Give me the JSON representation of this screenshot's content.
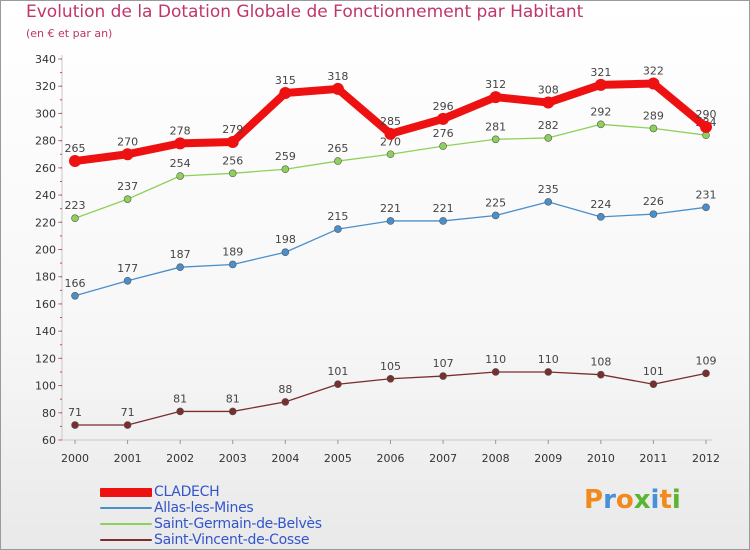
{
  "chart_data": {
    "type": "line",
    "title": "Evolution de la Dotation Globale de Fonctionnement par Habitant",
    "subtitle": "(en € et par an)",
    "xlabel": "",
    "ylabel": "",
    "x": [
      "2000",
      "2001",
      "2002",
      "2003",
      "2004",
      "2005",
      "2006",
      "2007",
      "2008",
      "2009",
      "2010",
      "2011",
      "2012"
    ],
    "ylim": [
      60,
      340
    ],
    "yticks": [
      60,
      80,
      100,
      120,
      140,
      160,
      180,
      200,
      220,
      240,
      260,
      280,
      300,
      320,
      340
    ],
    "grid": false,
    "legend_position": "bottom-left",
    "series": [
      {
        "name": "CLADECH",
        "color": "#ee1111",
        "values": [
          265,
          270,
          278,
          279,
          315,
          318,
          285,
          296,
          312,
          308,
          321,
          322,
          290
        ]
      },
      {
        "name": "Allas-les-Mines",
        "color": "#4a8fcc",
        "values": [
          166,
          177,
          187,
          189,
          198,
          215,
          221,
          221,
          225,
          235,
          224,
          226,
          231
        ]
      },
      {
        "name": "Saint-Germain-de-Belvès",
        "color": "#8fd05a",
        "values": [
          223,
          237,
          254,
          256,
          259,
          265,
          270,
          276,
          281,
          282,
          292,
          289,
          284
        ]
      },
      {
        "name": "Saint-Vincent-de-Cosse",
        "color": "#7a2e2e",
        "values": [
          71,
          71,
          81,
          81,
          88,
          101,
          105,
          107,
          110,
          110,
          108,
          101,
          109
        ]
      }
    ]
  },
  "branding": {
    "logo_letters": [
      "P",
      "r",
      "o",
      "x",
      "i",
      "t",
      "i"
    ],
    "logo_colors": [
      "#f08a1c",
      "#4a90d9",
      "#f08a1c",
      "#5bb531",
      "#4a90d9",
      "#f08a1c",
      "#5bb531"
    ]
  }
}
